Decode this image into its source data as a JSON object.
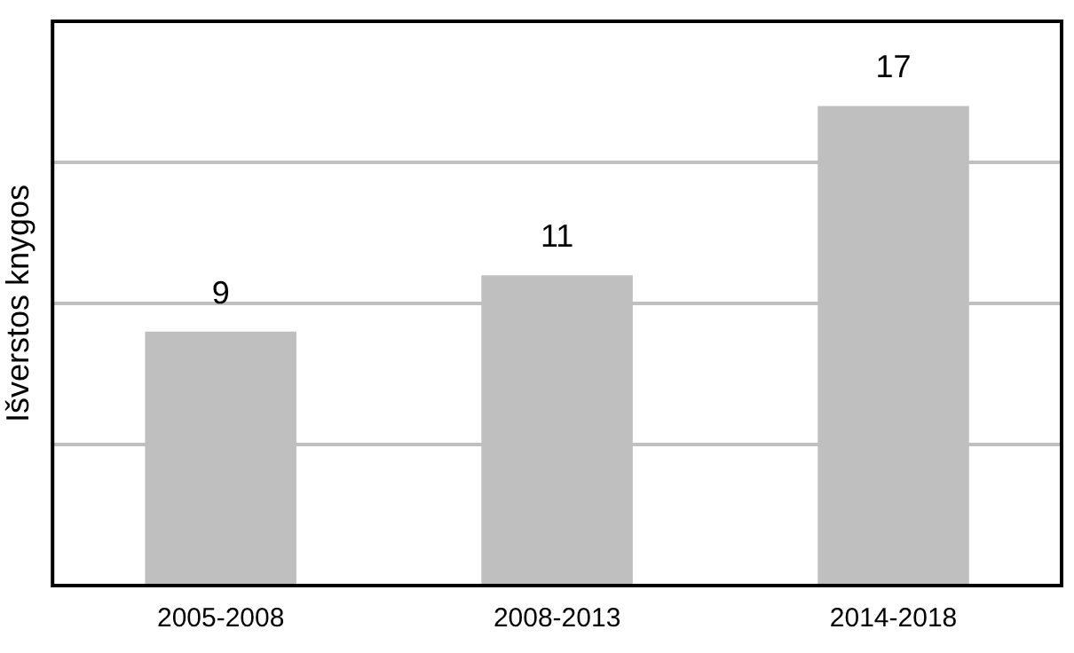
{
  "chart_data": {
    "type": "bar",
    "ylabel": "Išverstos knygos",
    "categories": [
      "2005-2008",
      "2008-2013",
      "2014-2018"
    ],
    "values": [
      9,
      11,
      17
    ],
    "color": "#bfbfbf",
    "ylim": [
      0,
      20
    ],
    "yticks": [
      {
        "value": 5,
        "label": null
      },
      {
        "value": 10,
        "label": null
      },
      {
        "value": 15,
        "label": null
      }
    ],
    "grid": "y",
    "tick_labels": "x",
    "data_labels": true,
    "legend": false
  }
}
